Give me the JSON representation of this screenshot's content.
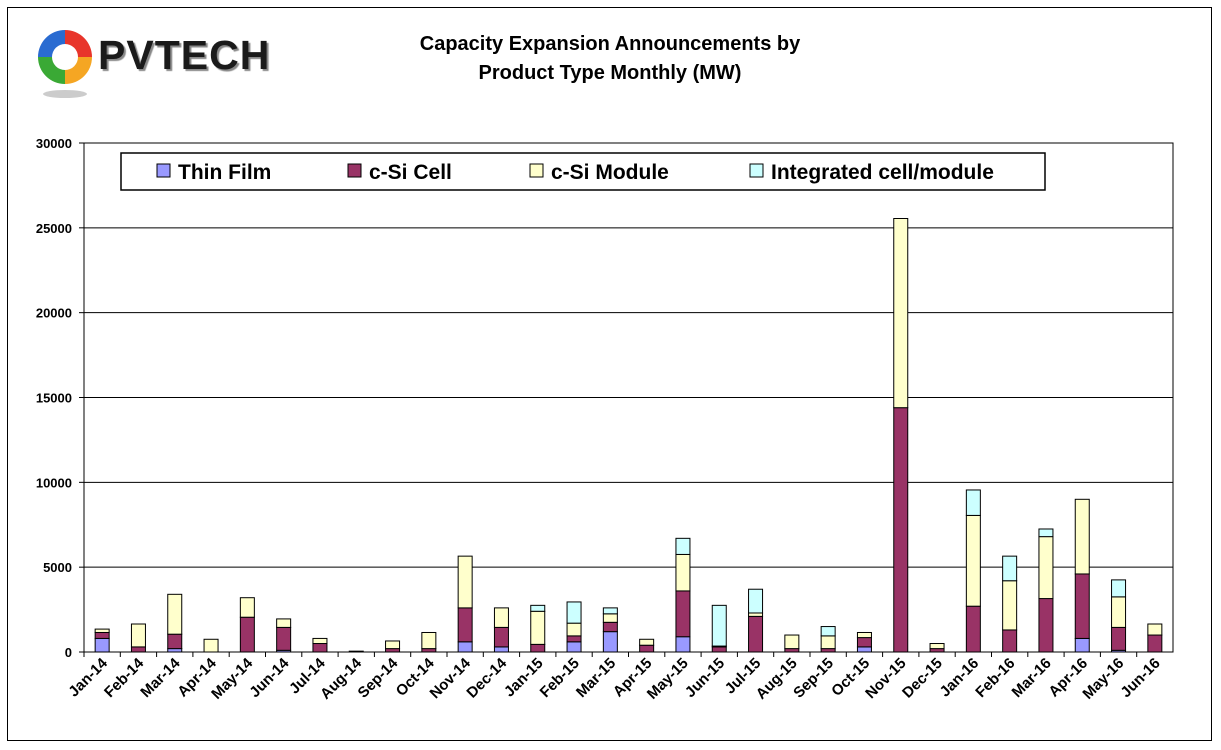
{
  "logo": {
    "text": "PVTECH"
  },
  "chart_data": {
    "type": "bar",
    "stacked": true,
    "title": "Capacity Expansion Announcements by Product Type Monthly (MW)",
    "title_lines": [
      "Capacity Expansion Announcements by",
      "Product Type Monthly (MW)"
    ],
    "xlabel": "",
    "ylabel": "",
    "ylim": [
      0,
      30000
    ],
    "yticks": [
      0,
      5000,
      10000,
      15000,
      20000,
      25000,
      30000
    ],
    "grid": true,
    "legend_position": "top",
    "categories": [
      "Jan-14",
      "Feb-14",
      "Mar-14",
      "Apr-14",
      "May-14",
      "Jun-14",
      "Jul-14",
      "Aug-14",
      "Sep-14",
      "Oct-14",
      "Nov-14",
      "Dec-14",
      "Jan-15",
      "Feb-15",
      "Mar-15",
      "Apr-15",
      "May-15",
      "Jun-15",
      "Jul-15",
      "Aug-15",
      "Sep-15",
      "Oct-15",
      "Nov-15",
      "Dec-15",
      "Jan-16",
      "Feb-16",
      "Mar-16",
      "Apr-16",
      "May-16",
      "Jun-16"
    ],
    "series": [
      {
        "name": "Thin Film",
        "color": "#9999ff",
        "values": [
          800,
          0,
          200,
          0,
          0,
          100,
          0,
          0,
          0,
          0,
          600,
          300,
          0,
          600,
          1200,
          0,
          900,
          0,
          0,
          0,
          0,
          300,
          0,
          0,
          0,
          0,
          0,
          800,
          100,
          0
        ]
      },
      {
        "name": "c-Si Cell",
        "color": "#993366",
        "values": [
          350,
          300,
          850,
          0,
          2050,
          1350,
          500,
          0,
          200,
          200,
          2000,
          1150,
          450,
          350,
          550,
          400,
          2700,
          300,
          2100,
          200,
          200,
          550,
          14400,
          200,
          2700,
          1300,
          3150,
          3800,
          1350,
          1000
        ]
      },
      {
        "name": "c-Si Module",
        "color": "#ffffcc",
        "values": [
          200,
          1350,
          2350,
          750,
          1150,
          500,
          300,
          50,
          450,
          950,
          3050,
          1150,
          1950,
          750,
          500,
          350,
          2150,
          50,
          200,
          800,
          750,
          300,
          11150,
          300,
          5350,
          2900,
          3650,
          4400,
          1800,
          650
        ]
      },
      {
        "name": "Integrated cell/module",
        "color": "#ccffff",
        "values": [
          0,
          0,
          0,
          0,
          0,
          0,
          0,
          0,
          0,
          0,
          0,
          0,
          350,
          1250,
          350,
          0,
          950,
          2400,
          1400,
          0,
          550,
          0,
          0,
          0,
          1500,
          1450,
          450,
          0,
          1000,
          0
        ]
      }
    ]
  }
}
